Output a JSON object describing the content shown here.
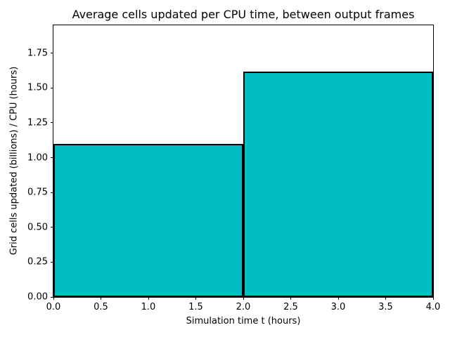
{
  "chart_data": {
    "type": "bar",
    "title": "Average cells updated per CPU time, between output frames",
    "xlabel": "Simulation time t (hours)",
    "ylabel": "Grid cells updated (billions) / CPU (hours)",
    "xlim": [
      0,
      4
    ],
    "ylim": [
      0,
      1.95
    ],
    "grid": false,
    "legend": "none",
    "bar_fill": "#00BEC2",
    "bar_edge": "#000000",
    "bars": [
      {
        "x_start": 0,
        "x_end": 2,
        "value": 1.1
      },
      {
        "x_start": 2,
        "x_end": 4,
        "value": 1.62
      }
    ],
    "x_ticks": [
      0.0,
      0.5,
      1.0,
      1.5,
      2.0,
      2.5,
      3.0,
      3.5,
      4.0
    ],
    "x_tick_labels": [
      "0.0",
      "0.5",
      "1.0",
      "1.5",
      "2.0",
      "2.5",
      "3.0",
      "3.5",
      "4.0"
    ],
    "y_ticks": [
      0.0,
      0.25,
      0.5,
      0.75,
      1.0,
      1.25,
      1.5,
      1.75
    ],
    "y_tick_labels": [
      "0.00",
      "0.25",
      "0.50",
      "0.75",
      "1.00",
      "1.25",
      "1.50",
      "1.75"
    ]
  }
}
